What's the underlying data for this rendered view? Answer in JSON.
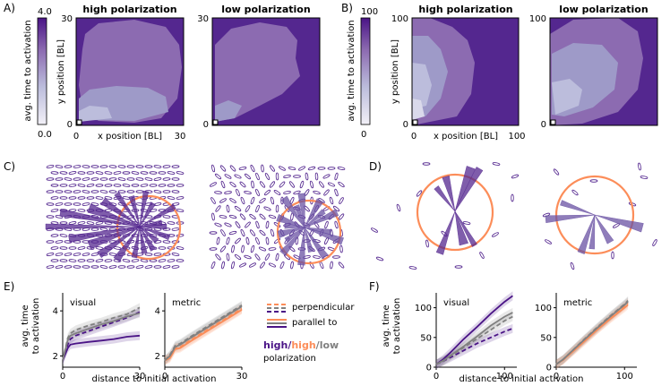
{
  "panel_labels": {
    "a": "A)",
    "b": "B)",
    "c": "C)",
    "d": "D)",
    "e": "E)",
    "f": "F)"
  },
  "legend": {
    "perpendicular": "perpendicular",
    "parallel_to": "parallel to",
    "high1": "high",
    "slash1": "/",
    "high2": "high",
    "slash2": "/",
    "low": "low",
    "polarization": "polarization"
  },
  "colors": {
    "dark_purple": "#4a1486",
    "mid_purple": "#8c6bb1",
    "light_purple": "#cbbde6",
    "orange": "#fc8d59",
    "grey": "#808080"
  },
  "chart_data": [
    {
      "id": "A",
      "type": "heatmap",
      "colorbar": {
        "label": "avg. time to activation",
        "max_label": "4.0",
        "min_label": "0.0",
        "range": [
          0,
          4
        ]
      },
      "xlabel": "x position [BL]",
      "ylabel": "y position [BL]",
      "panels": [
        {
          "title": "high polarization",
          "x_ticks": [
            "0",
            "30"
          ],
          "y_ticks": [
            "0",
            "30"
          ],
          "xlim": [
            0,
            30
          ],
          "ylim": [
            0,
            30
          ]
        },
        {
          "title": "low polarization",
          "x_ticks": [
            "0",
            "30"
          ],
          "y_ticks": [
            "0",
            "30"
          ],
          "xlim": [
            0,
            30
          ],
          "ylim": [
            0,
            30
          ]
        }
      ]
    },
    {
      "id": "B",
      "type": "heatmap",
      "colorbar": {
        "label": "avg. time to activation",
        "max_label": "100",
        "min_label": "0",
        "range": [
          0,
          100
        ]
      },
      "xlabel": "x position [BL]",
      "ylabel": "y position [BL]",
      "panels": [
        {
          "title": "high polarization",
          "x_ticks": [
            "0",
            "100"
          ],
          "y_ticks": [
            "0",
            "100"
          ],
          "xlim": [
            0,
            100
          ],
          "ylim": [
            0,
            100
          ]
        },
        {
          "title": "low polarization",
          "x_ticks": [
            "0",
            "100"
          ],
          "y_ticks": [
            "0",
            "100"
          ],
          "xlim": [
            0,
            100
          ],
          "ylim": [
            0,
            100
          ]
        }
      ]
    },
    {
      "id": "E",
      "type": "line",
      "xlabel": "distance to initial activation",
      "ylabel": "avg. time to activation",
      "panels": [
        {
          "title": "visual",
          "xlim": [
            0,
            30
          ],
          "ylim": [
            1.5,
            4.8
          ],
          "x_ticks": [
            "0",
            "30"
          ],
          "y_ticks": [
            "2",
            "4"
          ],
          "series": [
            {
              "polarization": "high",
              "direction": "parallel",
              "color": "#4a1486",
              "x": [
                0,
                2,
                3,
                5,
                10,
                15,
                20,
                25,
                30
              ],
              "y": [
                1.8,
                2.35,
                2.5,
                2.55,
                2.62,
                2.68,
                2.75,
                2.85,
                2.9
              ]
            },
            {
              "polarization": "high",
              "direction": "perpendicular",
              "color": "#4a1486",
              "x": [
                0,
                2,
                3,
                5,
                10,
                15,
                20,
                25,
                30
              ],
              "y": [
                1.8,
                2.5,
                2.75,
                2.9,
                3.1,
                3.3,
                3.5,
                3.7,
                3.95
              ]
            },
            {
              "polarization": "low",
              "direction": "parallel",
              "color": "#808080",
              "x": [
                0,
                2,
                3,
                5,
                10,
                15,
                20,
                25,
                30
              ],
              "y": [
                1.8,
                2.7,
                2.9,
                3.0,
                3.2,
                3.4,
                3.55,
                3.75,
                3.9
              ]
            },
            {
              "polarization": "low",
              "direction": "perpendicular",
              "color": "#808080",
              "x": [
                0,
                2,
                3,
                5,
                10,
                15,
                20,
                25,
                30
              ],
              "y": [
                1.8,
                2.8,
                3.0,
                3.15,
                3.35,
                3.5,
                3.7,
                3.85,
                4.15
              ]
            }
          ]
        },
        {
          "title": "metric",
          "xlim": [
            0,
            30
          ],
          "ylim": [
            1.5,
            4.8
          ],
          "x_ticks": [
            "0",
            "30"
          ],
          "y_ticks": [
            "2",
            "4"
          ],
          "series": [
            {
              "polarization": "high",
              "direction": "parallel",
              "color": "#fc8d59",
              "x": [
                0,
                2,
                4,
                6,
                10,
                15,
                20,
                25,
                30
              ],
              "y": [
                1.8,
                1.9,
                2.3,
                2.35,
                2.65,
                3.0,
                3.35,
                3.7,
                4.05
              ]
            },
            {
              "polarization": "high",
              "direction": "perpendicular",
              "color": "#fc8d59",
              "x": [
                0,
                2,
                4,
                6,
                10,
                15,
                20,
                25,
                30
              ],
              "y": [
                1.8,
                1.95,
                2.35,
                2.4,
                2.7,
                3.05,
                3.4,
                3.75,
                4.1
              ]
            },
            {
              "polarization": "low",
              "direction": "parallel",
              "color": "#808080",
              "x": [
                0,
                2,
                4,
                6,
                10,
                15,
                20,
                25,
                30
              ],
              "y": [
                1.8,
                2.0,
                2.4,
                2.5,
                2.8,
                3.15,
                3.5,
                3.85,
                4.2
              ]
            },
            {
              "polarization": "low",
              "direction": "perpendicular",
              "color": "#808080",
              "x": [
                0,
                2,
                4,
                6,
                10,
                15,
                20,
                25,
                30
              ],
              "y": [
                1.8,
                2.05,
                2.45,
                2.55,
                2.85,
                3.2,
                3.55,
                3.9,
                4.25
              ]
            }
          ]
        }
      ]
    },
    {
      "id": "F",
      "type": "line",
      "xlabel": "distance to initial activation",
      "ylabel": "avg. time to activation",
      "panels": [
        {
          "title": "visual",
          "xlim": [
            0,
            118
          ],
          "ylim": [
            0,
            125
          ],
          "x_ticks": [
            "0",
            "100"
          ],
          "y_ticks": [
            "0",
            "50",
            "100"
          ],
          "series": [
            {
              "polarization": "high",
              "direction": "parallel",
              "color": "#4a1486",
              "x": [
                0,
                10,
                20,
                40,
                60,
                80,
                100,
                112
              ],
              "y": [
                5,
                13,
                24,
                47,
                68,
                90,
                110,
                120
              ]
            },
            {
              "polarization": "high",
              "direction": "perpendicular",
              "color": "#4a1486",
              "x": [
                0,
                10,
                20,
                40,
                60,
                80,
                100,
                112
              ],
              "y": [
                5,
                10,
                16,
                28,
                40,
                50,
                60,
                65
              ]
            },
            {
              "polarization": "low",
              "direction": "parallel",
              "color": "#808080",
              "x": [
                0,
                10,
                20,
                40,
                60,
                80,
                100,
                112
              ],
              "y": [
                5,
                11,
                19,
                35,
                52,
                70,
                85,
                92
              ]
            },
            {
              "polarization": "low",
              "direction": "perpendicular",
              "color": "#808080",
              "x": [
                0,
                10,
                20,
                40,
                60,
                80,
                100,
                112
              ],
              "y": [
                5,
                10,
                18,
                33,
                48,
                63,
                78,
                85
              ]
            }
          ]
        },
        {
          "title": "metric",
          "xlim": [
            0,
            118
          ],
          "ylim": [
            0,
            125
          ],
          "x_ticks": [
            "0",
            "100"
          ],
          "y_ticks": [
            "0",
            "50",
            "100"
          ],
          "series": [
            {
              "polarization": "high",
              "direction": "parallel",
              "color": "#fc8d59",
              "x": [
                0,
                10,
                20,
                40,
                60,
                80,
                100,
                105
              ],
              "y": [
                5,
                12,
                22,
                42,
                63,
                82,
                100,
                105
              ]
            },
            {
              "polarization": "high",
              "direction": "perpendicular",
              "color": "#fc8d59",
              "x": [
                0,
                10,
                20,
                40,
                60,
                80,
                100,
                105
              ],
              "y": [
                5,
                12,
                23,
                44,
                64,
                84,
                103,
                108
              ]
            },
            {
              "polarization": "low",
              "direction": "parallel",
              "color": "#808080",
              "x": [
                0,
                10,
                20,
                40,
                60,
                80,
                100,
                105
              ],
              "y": [
                5,
                13,
                24,
                45,
                66,
                86,
                105,
                110
              ]
            },
            {
              "polarization": "low",
              "direction": "perpendicular",
              "color": "#808080",
              "x": [
                0,
                10,
                20,
                40,
                60,
                80,
                100,
                105
              ],
              "y": [
                5,
                13,
                24,
                46,
                67,
                87,
                106,
                112
              ]
            }
          ]
        }
      ]
    }
  ]
}
